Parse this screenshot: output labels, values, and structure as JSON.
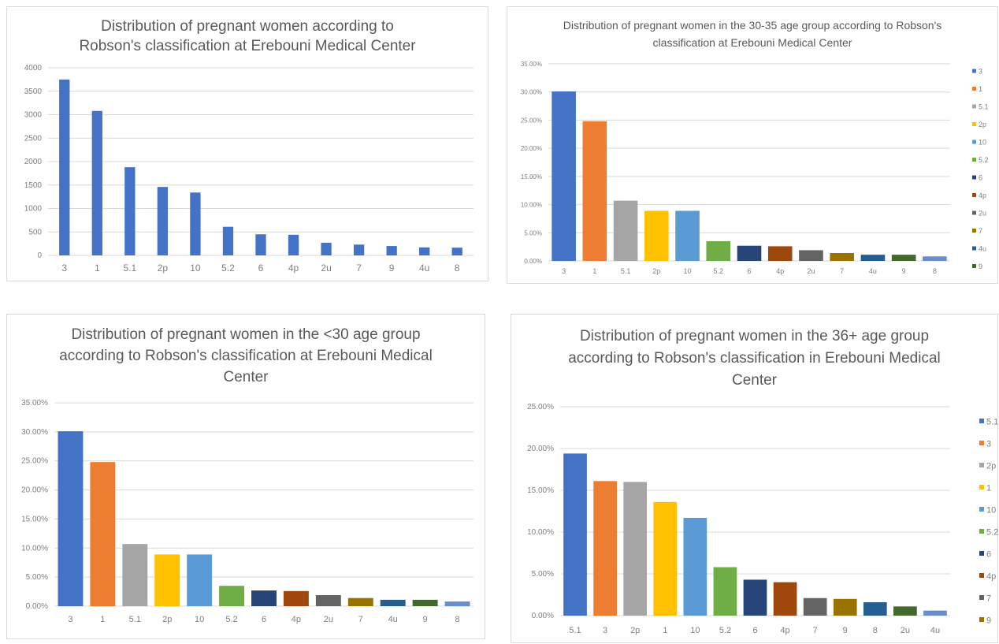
{
  "chart_data": [
    {
      "type": "bar",
      "title": "Distribution of pregnant women according to Robson's classification at Erebouni Medical Center",
      "categories": [
        "3",
        "1",
        "5.1",
        "2p",
        "10",
        "5.2",
        "6",
        "4p",
        "2u",
        "7",
        "9",
        "4u",
        "8"
      ],
      "values": [
        3750,
        3080,
        1880,
        1460,
        1340,
        610,
        450,
        440,
        270,
        230,
        200,
        170,
        165
      ],
      "ylim": [
        0,
        4000
      ],
      "yticks": [
        "0",
        "500",
        "1000",
        "1500",
        "2000",
        "2500",
        "3000",
        "3500",
        "4000"
      ],
      "grid": true,
      "legend": "none",
      "colors": [
        "#4472c4"
      ]
    },
    {
      "type": "bar",
      "title": "Distribution of pregnant women in the 30-35 age group according to Robson's classification at Erebouni Medical Center",
      "categories": [
        "3",
        "1",
        "5.1",
        "2p",
        "10",
        "5.2",
        "6",
        "4p",
        "2u",
        "7",
        "4u",
        "9",
        "8"
      ],
      "values": [
        30.1,
        24.8,
        10.7,
        8.9,
        8.9,
        3.5,
        2.7,
        2.6,
        1.9,
        1.4,
        1.1,
        1.1,
        0.8
      ],
      "ylim": [
        0,
        35
      ],
      "yticks": [
        "0.00%",
        "5.00%",
        "10.00%",
        "15.00%",
        "20.00%",
        "25.00%",
        "30.00%",
        "35.00%"
      ],
      "grid": true,
      "legend": "right",
      "legend_entries": [
        "3",
        "1",
        "5.1",
        "2p",
        "10",
        "5.2",
        "6",
        "4p",
        "2u",
        "7",
        "4u",
        "9"
      ],
      "colors": [
        "#4472c4",
        "#ed7d31",
        "#a5a5a5",
        "#ffc000",
        "#5b9bd5",
        "#70ad47",
        "#264478",
        "#9e480e",
        "#636363",
        "#997300",
        "#255e91",
        "#43682b",
        "#698ed0"
      ]
    },
    {
      "type": "bar",
      "title": "Distribution of pregnant women in the <30 age group according to Robson's classification at Erebouni Medical Center",
      "categories": [
        "3",
        "1",
        "5.1",
        "2p",
        "10",
        "5.2",
        "6",
        "4p",
        "2u",
        "7",
        "4u",
        "9",
        "8"
      ],
      "values": [
        30.1,
        24.8,
        10.7,
        8.9,
        8.9,
        3.5,
        2.7,
        2.6,
        1.9,
        1.4,
        1.1,
        1.1,
        0.8
      ],
      "ylim": [
        0,
        35
      ],
      "yticks": [
        "0.00%",
        "5.00%",
        "10.00%",
        "15.00%",
        "20.00%",
        "25.00%",
        "30.00%",
        "35.00%"
      ],
      "grid": true,
      "legend": "none",
      "colors": [
        "#4472c4",
        "#ed7d31",
        "#a5a5a5",
        "#ffc000",
        "#5b9bd5",
        "#70ad47",
        "#264478",
        "#9e480e",
        "#636363",
        "#997300",
        "#255e91",
        "#43682b",
        "#698ed0"
      ]
    },
    {
      "type": "bar",
      "title": "Distribution of pregnant women in the 36+ age group according to Robson's classification in Erebouni Medical Center",
      "categories": [
        "5.1",
        "3",
        "2p",
        "1",
        "10",
        "5.2",
        "6",
        "4p",
        "7",
        "9",
        "8",
        "2u",
        "4u"
      ],
      "values": [
        19.4,
        16.1,
        16.0,
        13.6,
        11.7,
        5.8,
        4.3,
        4.0,
        2.1,
        2.0,
        1.6,
        1.1,
        0.6
      ],
      "ylim": [
        0,
        25
      ],
      "yticks": [
        "0.00%",
        "5.00%",
        "10.00%",
        "15.00%",
        "20.00%",
        "25.00%"
      ],
      "grid": true,
      "legend": "right",
      "legend_entries": [
        "5.1",
        "3",
        "2p",
        "1",
        "10",
        "5.2",
        "6",
        "4p",
        "7",
        "9"
      ],
      "colors": [
        "#4472c4",
        "#ed7d31",
        "#a5a5a5",
        "#ffc000",
        "#5b9bd5",
        "#70ad47",
        "#264478",
        "#9e480e",
        "#636363",
        "#997300",
        "#255e91",
        "#43682b",
        "#698ed0"
      ]
    }
  ]
}
